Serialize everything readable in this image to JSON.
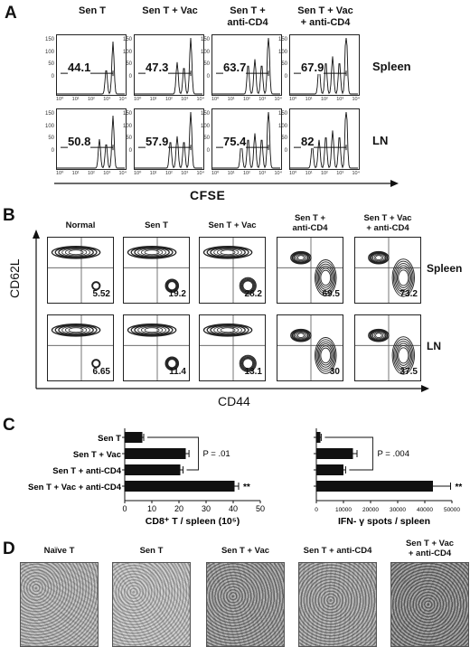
{
  "panels": {
    "a": {
      "label": "A",
      "columns": [
        "Sen T",
        "Sen T + Vac",
        "Sen T +\nanti-CD4",
        "Sen T + Vac\n+ anti-CD4"
      ],
      "rows": [
        "Spleen",
        "LN"
      ],
      "values": [
        [
          "44.1",
          "47.3",
          "63.7",
          "67.9"
        ],
        [
          "50.8",
          "57.9",
          "75.4",
          "82"
        ]
      ],
      "xlabel": "CFSE",
      "x_ticks": [
        "10⁰",
        "10¹",
        "10²",
        "10³",
        "10⁴"
      ]
    },
    "b": {
      "label": "B",
      "columns": [
        "Normal",
        "Sen T",
        "Sen T + Vac",
        "Sen T +\nanti-CD4",
        "Sen T + Vac\n+ anti-CD4"
      ],
      "rows": [
        "Spleen",
        "LN"
      ],
      "values": [
        [
          "5.52",
          "19.2",
          "28.2",
          "69.5",
          "73.2"
        ],
        [
          "6.65",
          "11.4",
          "13.1",
          "30",
          "37.5"
        ]
      ],
      "xlabel": "CD44",
      "ylabel": "CD62L"
    },
    "c": {
      "label": "C",
      "categories": [
        "Sen T",
        "Sen T + Vac",
        "Sen T + anti-CD4",
        "Sen T + Vac + anti-CD4"
      ]
    },
    "d": {
      "label": "D",
      "columns": [
        "Naïve T",
        "Sen T",
        "Sen T + Vac",
        "Sen T + anti-CD4",
        "Sen T + Vac\n+ anti-CD4"
      ]
    }
  },
  "chart_data": [
    {
      "type": "bar",
      "orientation": "horizontal",
      "categories": [
        "Sen T",
        "Sen T + Vac",
        "Sen T + anti-CD4",
        "Sen T + Vac + anti-CD4"
      ],
      "values": [
        6.5,
        22.5,
        20.5,
        40.5
      ],
      "errors": [
        0.5,
        1.2,
        1.0,
        1.5
      ],
      "xlabel": "CD8⁺ T / spleen (10⁵)",
      "xlim": [
        0,
        50
      ],
      "x_ticks": [
        "0",
        "10",
        "20",
        "30",
        "40",
        "50"
      ],
      "annotations": {
        "p_value": "P = .01",
        "significance": "**"
      }
    },
    {
      "type": "bar",
      "orientation": "horizontal",
      "categories": [
        "Sen T",
        "Sen T + Vac",
        "Sen T + anti-CD4",
        "Sen T + Vac + anti-CD4"
      ],
      "values": [
        1500,
        13500,
        10000,
        43000
      ],
      "errors": [
        300,
        1500,
        800,
        6500
      ],
      "xlabel": "IFN- γ spots / spleen",
      "xlim": [
        0,
        50000
      ],
      "x_ticks": [
        "0",
        "10000",
        "20000",
        "30000",
        "40000",
        "50000"
      ],
      "annotations": {
        "p_value": "P = .004",
        "significance": "**"
      }
    }
  ]
}
